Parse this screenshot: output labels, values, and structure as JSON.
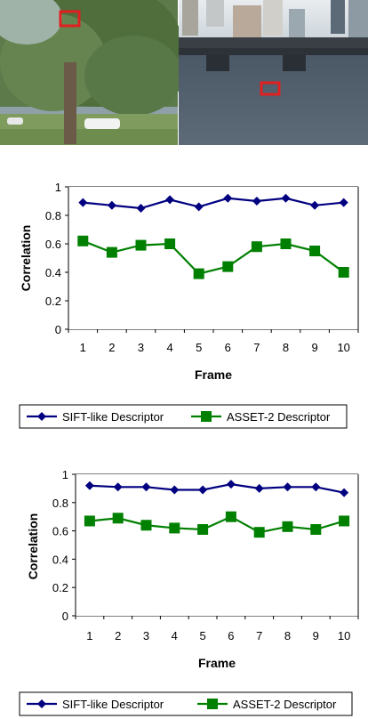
{
  "colors": {
    "sift": "#000080",
    "asset": "#008000",
    "marker_box": "#e02020",
    "grid": "#000000",
    "plot_bg": "#ffffff"
  },
  "photos": {
    "left": {
      "name": "park-photo",
      "highlight": "red-box"
    },
    "right": {
      "name": "river-photo",
      "highlight": "red-box"
    }
  },
  "chart_data": [
    {
      "type": "line",
      "title": "",
      "xlabel": "Frame",
      "ylabel": "Correlation",
      "ylim": [
        0,
        1
      ],
      "yticks": [
        "0",
        "0.2",
        "0.4",
        "0.6",
        "0.8",
        "1"
      ],
      "x": [
        1,
        2,
        3,
        4,
        5,
        6,
        7,
        8,
        9,
        10
      ],
      "grid": "horizontal",
      "legend_position": "bottom",
      "series": [
        {
          "name": "SIFT-like Descriptor",
          "marker": "diamond",
          "color": "#000080",
          "values": [
            0.89,
            0.87,
            0.85,
            0.91,
            0.86,
            0.92,
            0.9,
            0.92,
            0.87,
            0.89
          ]
        },
        {
          "name": "ASSET-2 Descriptor",
          "marker": "square",
          "color": "#008000",
          "values": [
            0.62,
            0.54,
            0.59,
            0.6,
            0.39,
            0.44,
            0.58,
            0.6,
            0.55,
            0.4
          ]
        }
      ]
    },
    {
      "type": "line",
      "title": "",
      "xlabel": "Frame",
      "ylabel": "Correlation",
      "ylim": [
        0,
        1
      ],
      "yticks": [
        "0",
        "0.2",
        "0.4",
        "0.6",
        "0.8",
        "1"
      ],
      "x": [
        1,
        2,
        3,
        4,
        5,
        6,
        7,
        8,
        9,
        10
      ],
      "grid": "horizontal",
      "legend_position": "bottom",
      "series": [
        {
          "name": "SIFT-like Descriptor",
          "marker": "diamond",
          "color": "#000080",
          "values": [
            0.92,
            0.91,
            0.91,
            0.89,
            0.89,
            0.93,
            0.9,
            0.91,
            0.91,
            0.87
          ]
        },
        {
          "name": "ASSET-2 Descriptor",
          "marker": "square",
          "color": "#008000",
          "values": [
            0.67,
            0.69,
            0.64,
            0.62,
            0.61,
            0.7,
            0.59,
            0.63,
            0.61,
            0.67
          ]
        }
      ]
    }
  ]
}
